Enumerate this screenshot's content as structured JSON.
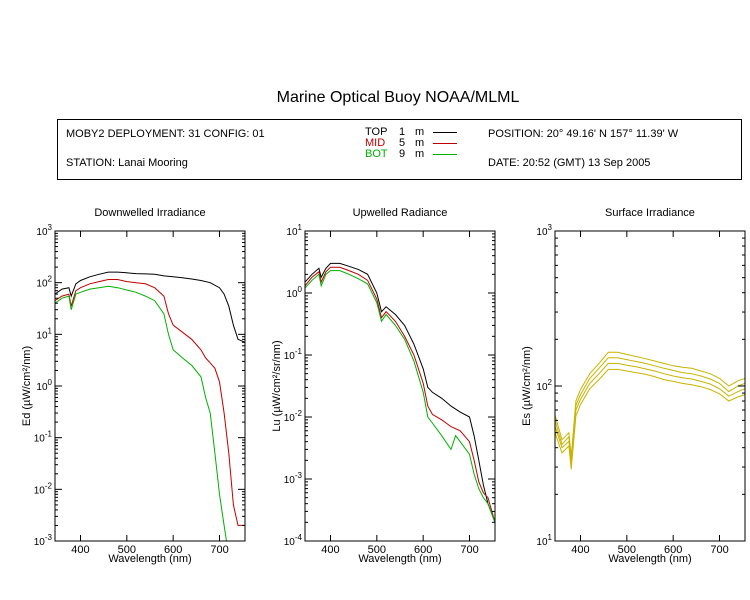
{
  "title": "Marine Optical Buoy NOAA/MLML",
  "info": {
    "deployment": "MOBY2 DEPLOYMENT: 31 CONFIG: 01",
    "station": "STATION: Lanai Mooring",
    "position": "POSITION: 20° 49.16' N   157° 11.39' W",
    "date": "DATE: 20:52 (GMT) 13 Sep 2005",
    "legend": [
      {
        "name": "TOP",
        "depth": "1",
        "unit": "m",
        "color": "#000000"
      },
      {
        "name": "MID",
        "depth": "5",
        "unit": "m",
        "color": "#c00000"
      },
      {
        "name": "BOT",
        "depth": "9",
        "unit": "m",
        "color": "#00b000"
      }
    ]
  },
  "chart_data": [
    {
      "type": "line",
      "title": "Downwelled Irradiance",
      "xlabel": "Wavelength (nm)",
      "ylabel": "Ed  (µW/cm²/nm)",
      "yscale": "log",
      "xlim": [
        345,
        755
      ],
      "ylim": [
        0.001,
        1000
      ],
      "xticks": [
        400,
        500,
        600,
        700
      ],
      "yticks": [
        0.001,
        0.01,
        0.1,
        1,
        10,
        100,
        1000
      ],
      "ytick_labels": [
        [
          "10",
          "-3"
        ],
        [
          "10",
          "-2"
        ],
        [
          "10",
          "-1"
        ],
        [
          "10",
          "0"
        ],
        [
          "10",
          "1"
        ],
        [
          "10",
          "2"
        ],
        [
          "10",
          "3"
        ]
      ],
      "series": [
        {
          "name": "TOP",
          "color": "#000000",
          "x": [
            345,
            360,
            375,
            380,
            390,
            400,
            420,
            440,
            460,
            480,
            500,
            520,
            540,
            560,
            580,
            600,
            620,
            640,
            660,
            680,
            700,
            710,
            720,
            730,
            740,
            755
          ],
          "y": [
            60,
            75,
            80,
            55,
            95,
            110,
            130,
            145,
            160,
            160,
            155,
            150,
            148,
            145,
            135,
            130,
            125,
            118,
            110,
            100,
            80,
            60,
            35,
            15,
            8,
            7
          ]
        },
        {
          "name": "MID",
          "color": "#c00000",
          "x": [
            345,
            360,
            375,
            380,
            390,
            400,
            420,
            440,
            460,
            480,
            500,
            520,
            540,
            560,
            580,
            590,
            600,
            620,
            640,
            660,
            670,
            680,
            690,
            700,
            710,
            720,
            730,
            740,
            755
          ],
          "y": [
            45,
            55,
            60,
            35,
            70,
            80,
            95,
            105,
            115,
            115,
            105,
            100,
            95,
            80,
            55,
            25,
            15,
            11,
            8,
            5,
            3.5,
            2.8,
            2.2,
            1.2,
            0.3,
            0.05,
            0.005,
            0.002,
            0.002
          ]
        },
        {
          "name": "BOT",
          "color": "#00b000",
          "x": [
            345,
            360,
            375,
            380,
            390,
            400,
            420,
            440,
            460,
            480,
            500,
            520,
            540,
            560,
            580,
            590,
            600,
            620,
            640,
            660,
            670,
            680,
            690,
            700,
            710,
            715,
            720,
            730,
            740
          ],
          "y": [
            40,
            50,
            55,
            30,
            60,
            65,
            75,
            80,
            85,
            80,
            72,
            65,
            55,
            45,
            25,
            10,
            5,
            3.5,
            2.5,
            1.5,
            0.6,
            0.3,
            0.05,
            0.008,
            0.002,
            0.001,
            0.001,
            0.001,
            0.001
          ]
        }
      ]
    },
    {
      "type": "line",
      "title": "Upwelled Radiance",
      "xlabel": "Wavelength (nm)",
      "ylabel": "Lu  (µW/cm²/sr/nm)",
      "yscale": "log",
      "xlim": [
        345,
        755
      ],
      "ylim": [
        0.0001,
        10
      ],
      "xticks": [
        400,
        500,
        600,
        700
      ],
      "yticks": [
        0.0001,
        0.001,
        0.01,
        0.1,
        1,
        10
      ],
      "ytick_labels": [
        [
          "10",
          "-4"
        ],
        [
          "10",
          "-3"
        ],
        [
          "10",
          "-2"
        ],
        [
          "10",
          "-1"
        ],
        [
          "10",
          "0"
        ],
        [
          "10",
          "1"
        ]
      ],
      "series": [
        {
          "name": "TOP",
          "color": "#000000",
          "x": [
            345,
            360,
            375,
            380,
            390,
            400,
            420,
            440,
            460,
            480,
            500,
            510,
            520,
            540,
            560,
            580,
            600,
            610,
            620,
            640,
            660,
            680,
            700,
            710,
            720,
            730,
            740,
            755
          ],
          "y": [
            1.5,
            2,
            2.5,
            1.8,
            2.5,
            3,
            3,
            2.7,
            2.4,
            2,
            1,
            0.5,
            0.6,
            0.45,
            0.3,
            0.15,
            0.06,
            0.03,
            0.025,
            0.02,
            0.015,
            0.012,
            0.01,
            0.005,
            0.002,
            0.0008,
            0.0004,
            0.0002
          ]
        },
        {
          "name": "MID",
          "color": "#c00000",
          "x": [
            345,
            360,
            375,
            380,
            390,
            400,
            420,
            440,
            460,
            480,
            500,
            510,
            520,
            540,
            560,
            580,
            600,
            610,
            620,
            640,
            660,
            680,
            700,
            710,
            720,
            730,
            740,
            755
          ],
          "y": [
            1.3,
            1.8,
            2.2,
            1.5,
            2.2,
            2.6,
            2.6,
            2.3,
            2,
            1.6,
            0.8,
            0.4,
            0.5,
            0.35,
            0.2,
            0.1,
            0.035,
            0.015,
            0.011,
            0.009,
            0.007,
            0.006,
            0.004,
            0.002,
            0.0009,
            0.0006,
            0.0005,
            0.0002
          ]
        },
        {
          "name": "BOT",
          "color": "#00b000",
          "x": [
            345,
            360,
            375,
            380,
            390,
            400,
            420,
            440,
            460,
            480,
            500,
            510,
            520,
            540,
            560,
            580,
            600,
            610,
            620,
            640,
            660,
            670,
            680,
            700,
            710,
            720,
            730,
            740,
            755
          ],
          "y": [
            1.2,
            1.6,
            2,
            1.3,
            2,
            2.3,
            2.3,
            2,
            1.7,
            1.4,
            0.7,
            0.35,
            0.45,
            0.3,
            0.18,
            0.08,
            0.025,
            0.01,
            0.008,
            0.005,
            0.003,
            0.005,
            0.004,
            0.0025,
            0.0012,
            0.0007,
            0.0005,
            0.0004,
            0.0002
          ]
        }
      ]
    },
    {
      "type": "line",
      "title": "Surface Irradiance",
      "xlabel": "Wavelength (nm)",
      "ylabel": "Es  (µW/cm²/nm)",
      "yscale": "log",
      "xlim": [
        345,
        755
      ],
      "ylim": [
        10,
        1000
      ],
      "xticks": [
        400,
        500,
        600,
        700
      ],
      "yticks": [
        10,
        100,
        1000
      ],
      "ytick_labels": [
        [
          "10",
          "1"
        ],
        [
          "10",
          "2"
        ],
        [
          "10",
          "3"
        ]
      ],
      "series": [
        {
          "color": "#c8b400",
          "x": [
            345,
            360,
            375,
            380,
            390,
            400,
            420,
            440,
            460,
            480,
            500,
            520,
            540,
            560,
            580,
            600,
            620,
            640,
            660,
            680,
            700,
            720,
            740,
            755
          ],
          "y": [
            65,
            45,
            50,
            35,
            80,
            95,
            120,
            140,
            165,
            165,
            160,
            155,
            150,
            145,
            140,
            135,
            132,
            130,
            125,
            120,
            112,
            100,
            108,
            112
          ]
        },
        {
          "color": "#c8b400",
          "x": [
            345,
            360,
            375,
            380,
            390,
            400,
            420,
            440,
            460,
            480,
            500,
            520,
            540,
            560,
            580,
            600,
            620,
            640,
            660,
            680,
            700,
            720,
            740,
            755
          ],
          "y": [
            60,
            42,
            47,
            33,
            75,
            88,
            112,
            130,
            152,
            152,
            148,
            144,
            140,
            135,
            130,
            126,
            122,
            120,
            116,
            111,
            104,
            92,
            100,
            104
          ]
        },
        {
          "color": "#c8b400",
          "x": [
            345,
            360,
            375,
            380,
            390,
            400,
            420,
            440,
            460,
            480,
            500,
            520,
            540,
            560,
            580,
            600,
            620,
            640,
            660,
            680,
            700,
            720,
            740,
            755
          ],
          "y": [
            55,
            40,
            44,
            31,
            70,
            82,
            104,
            120,
            140,
            140,
            136,
            133,
            129,
            125,
            120,
            116,
            113,
            111,
            107,
            103,
            96,
            86,
            92,
            96
          ]
        },
        {
          "color": "#c8b400",
          "x": [
            345,
            360,
            375,
            380,
            390,
            400,
            420,
            440,
            460,
            480,
            500,
            520,
            540,
            560,
            580,
            600,
            620,
            640,
            660,
            680,
            700,
            720,
            740,
            755
          ],
          "y": [
            50,
            37,
            41,
            29,
            64,
            76,
            96,
            110,
            128,
            128,
            125,
            122,
            119,
            115,
            110,
            107,
            104,
            102,
            99,
            95,
            89,
            80,
            85,
            88
          ]
        }
      ]
    }
  ]
}
